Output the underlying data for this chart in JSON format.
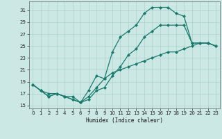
{
  "line1": {
    "x": [
      0,
      1,
      2,
      3,
      4,
      5,
      6,
      7,
      8,
      9,
      10,
      11,
      12,
      13,
      14,
      15,
      16,
      17,
      18,
      19,
      20,
      21,
      22,
      23
    ],
    "y": [
      18.5,
      17.5,
      17.0,
      17.0,
      16.5,
      16.5,
      15.5,
      16.5,
      18.0,
      19.5,
      20.5,
      21.0,
      21.5,
      22.0,
      22.5,
      23.0,
      23.5,
      24.0,
      24.0,
      24.5,
      25.0,
      25.5,
      25.5,
      25.0
    ]
  },
  "line2": {
    "x": [
      0,
      1,
      2,
      3,
      4,
      5,
      6,
      7,
      8,
      9,
      10,
      11,
      12,
      13,
      14,
      15,
      16,
      17,
      18,
      19,
      20,
      21,
      22,
      23
    ],
    "y": [
      18.5,
      17.5,
      16.5,
      17.0,
      16.5,
      16.0,
      15.5,
      17.5,
      20.0,
      19.5,
      24.0,
      26.5,
      27.5,
      28.5,
      30.5,
      31.5,
      31.5,
      31.5,
      30.5,
      30.0,
      25.5,
      25.5,
      25.5,
      25.0
    ]
  },
  "line3": {
    "x": [
      0,
      1,
      2,
      3,
      4,
      5,
      6,
      7,
      8,
      9,
      10,
      11,
      12,
      13,
      14,
      15,
      16,
      17,
      18,
      19,
      20,
      21,
      22,
      23
    ],
    "y": [
      18.5,
      17.5,
      16.5,
      17.0,
      16.5,
      16.0,
      15.5,
      16.0,
      17.5,
      18.0,
      20.0,
      21.5,
      23.5,
      24.5,
      26.5,
      27.5,
      28.5,
      28.5,
      28.5,
      28.5,
      25.5,
      25.5,
      25.5,
      25.0
    ]
  },
  "color": "#1a7a6e",
  "bg_color": "#cce8e4",
  "grid_color": "#aed0cc",
  "xlabel": "Humidex (Indice chaleur)",
  "xlim": [
    -0.5,
    23.5
  ],
  "ylim": [
    14.5,
    32.5
  ],
  "yticks": [
    15,
    17,
    19,
    21,
    23,
    25,
    27,
    29,
    31
  ],
  "xticks": [
    0,
    1,
    2,
    3,
    4,
    5,
    6,
    7,
    8,
    9,
    10,
    11,
    12,
    13,
    14,
    15,
    16,
    17,
    18,
    19,
    20,
    21,
    22,
    23
  ],
  "marker": "D",
  "markersize": 2,
  "linewidth": 0.9
}
